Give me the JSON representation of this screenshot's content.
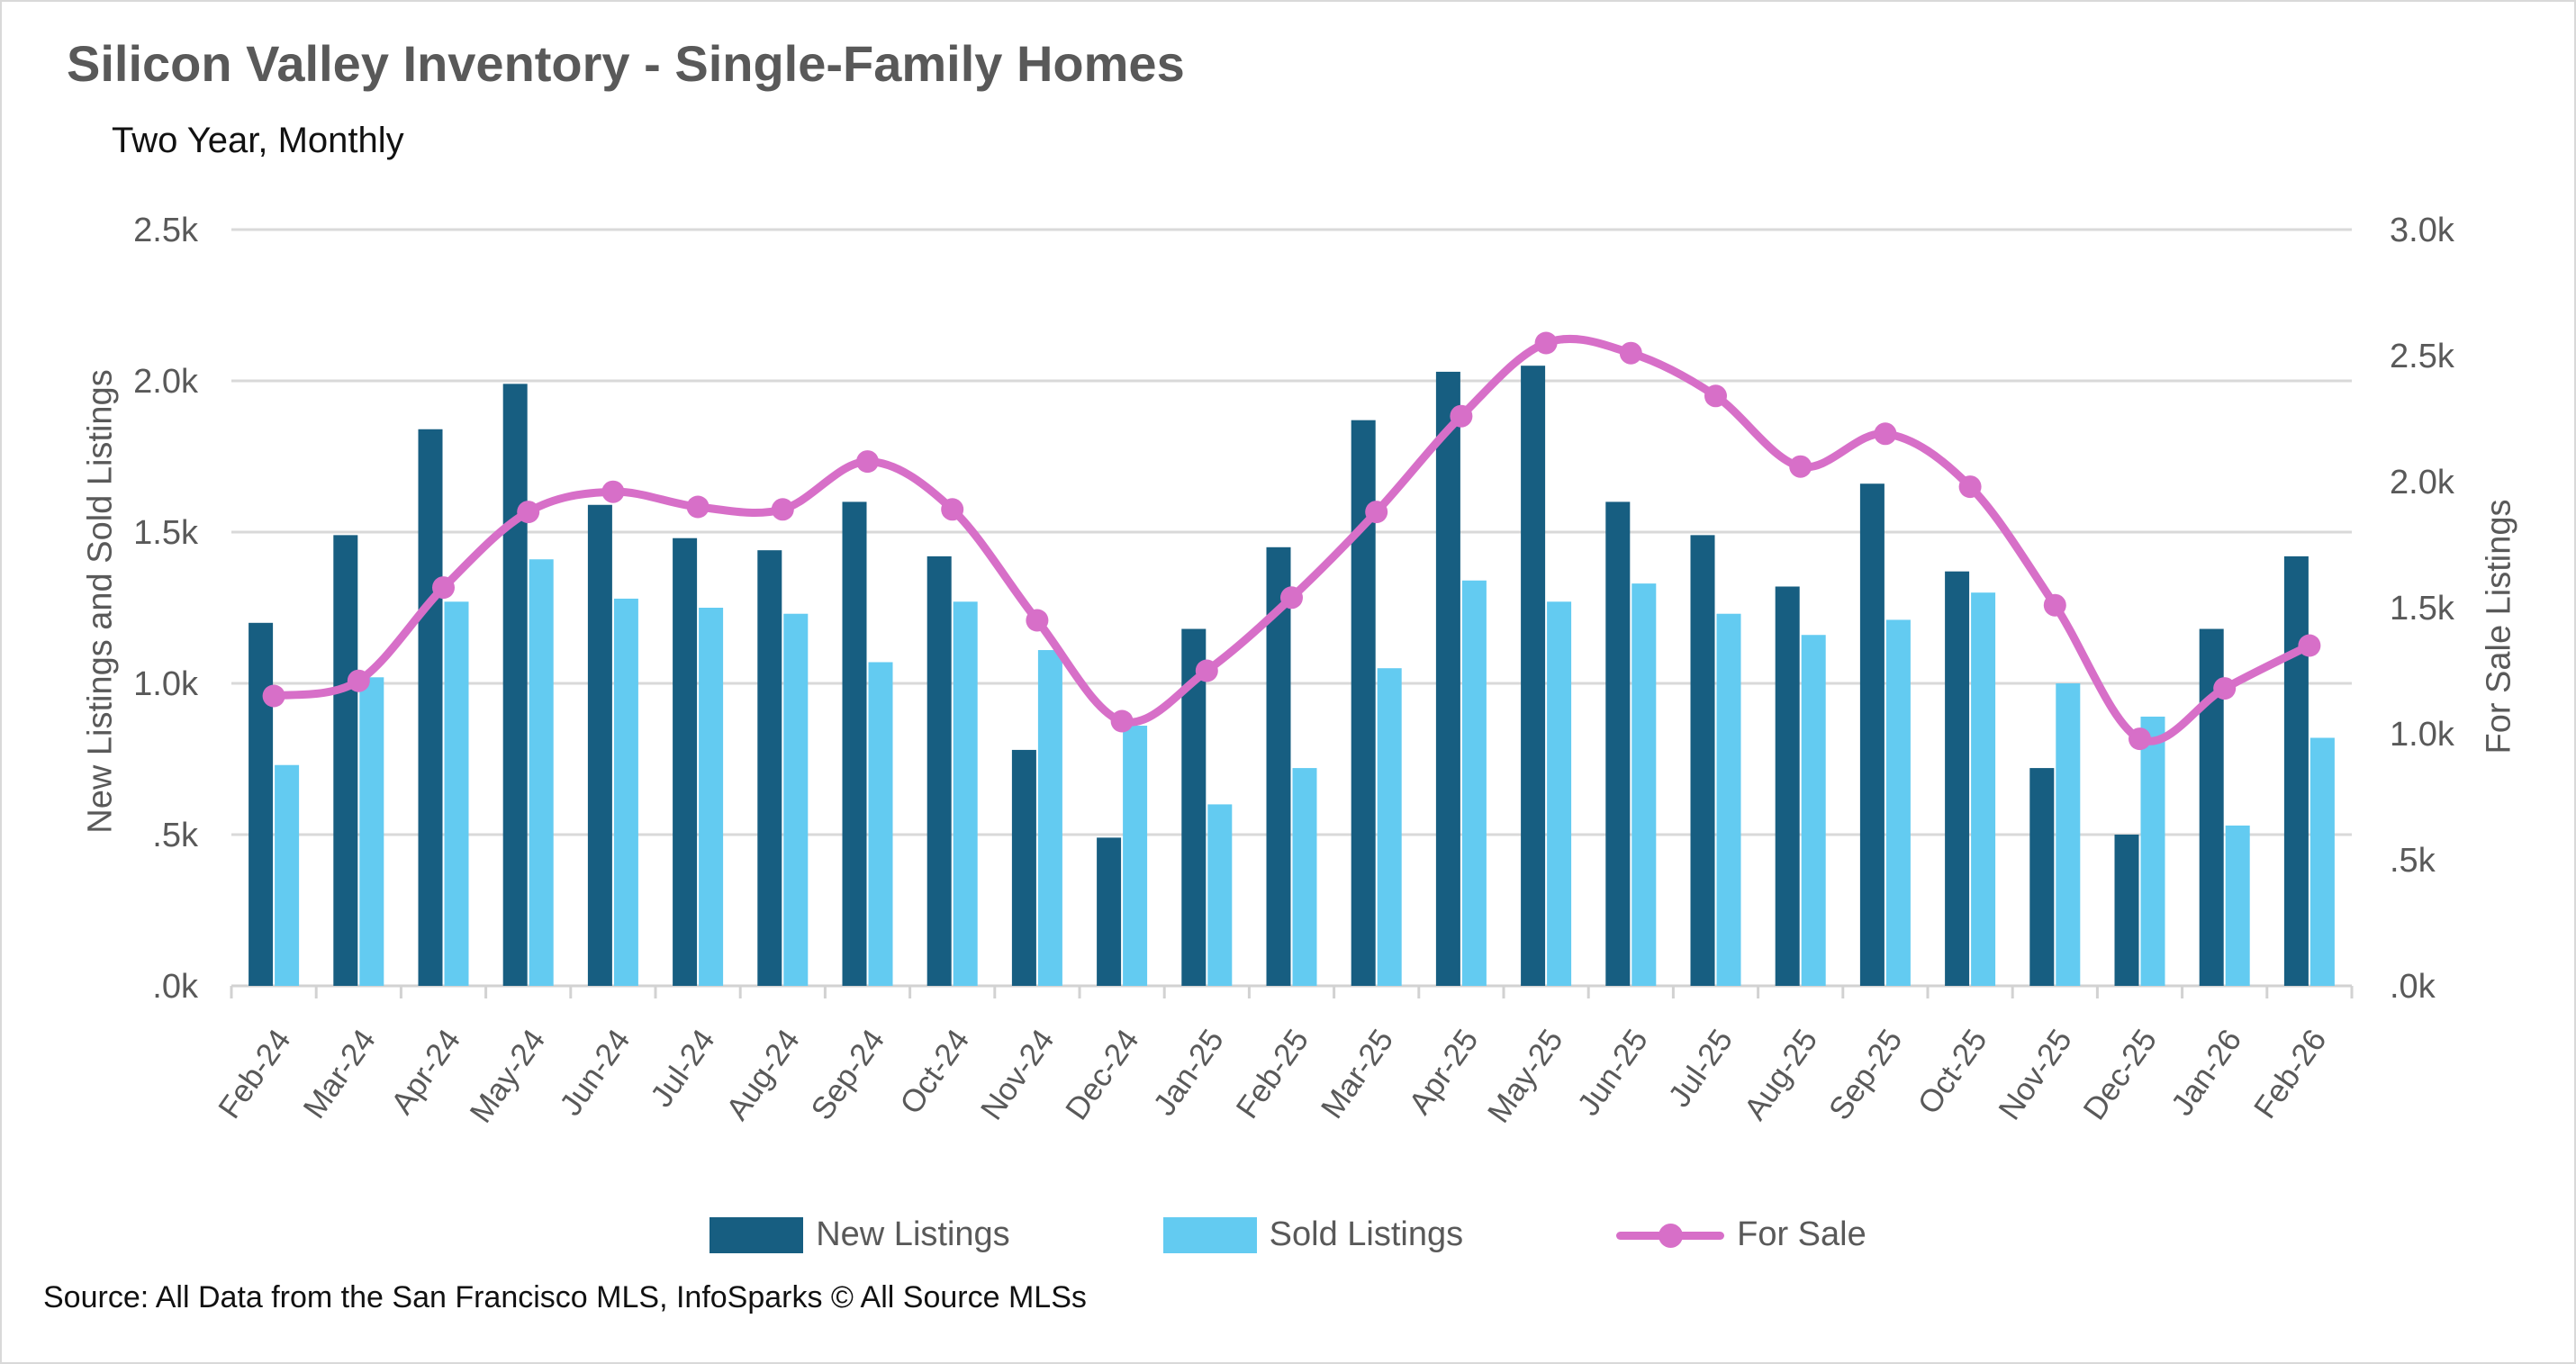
{
  "page": {
    "title": "Silicon Valley Inventory - Single-Family Homes",
    "subtitle": "Two Year, Monthly",
    "source": "Source: All Data from the San Francisco MLS, InfoSparks © All Source MLSs"
  },
  "legend": {
    "new_listings": "New Listings",
    "sold_listings": "Sold Listings",
    "for_sale": "For Sale"
  },
  "colors": {
    "new_listings_bar": "#175e81",
    "sold_listings_bar": "#63cbf1",
    "for_sale_line": "#d76fc8",
    "gridline": "#d9d9d9",
    "axis_line": "#d2d2d2",
    "axis_text": "#595959",
    "title_text": "#595959"
  },
  "chart_data": {
    "type": "bar",
    "subtype": "grouped bars with overlay line on secondary axis",
    "units": "thousands of listings",
    "categories": [
      "Feb-24",
      "Mar-24",
      "Apr-24",
      "May-24",
      "Jun-24",
      "Jul-24",
      "Aug-24",
      "Sep-24",
      "Oct-24",
      "Nov-24",
      "Dec-24",
      "Jan-25",
      "Feb-25",
      "Mar-25",
      "Apr-25",
      "May-25",
      "Jun-25",
      "Jul-25",
      "Aug-25",
      "Sep-25",
      "Oct-25",
      "Nov-25",
      "Dec-25",
      "Jan-26",
      "Feb-26"
    ],
    "series": [
      {
        "name": "New Listings",
        "type": "bar",
        "axis": "left",
        "color": "#175e81",
        "values": [
          1.2,
          1.49,
          1.84,
          1.99,
          1.59,
          1.48,
          1.44,
          1.6,
          1.42,
          0.78,
          0.49,
          1.18,
          1.45,
          1.87,
          2.03,
          2.05,
          1.6,
          1.49,
          1.32,
          1.66,
          1.37,
          0.72,
          0.5,
          1.18,
          1.42
        ]
      },
      {
        "name": "Sold Listings",
        "type": "bar",
        "axis": "left",
        "color": "#63cbf1",
        "values": [
          0.73,
          1.02,
          1.27,
          1.41,
          1.28,
          1.25,
          1.23,
          1.07,
          1.27,
          1.11,
          0.86,
          0.6,
          0.72,
          1.05,
          1.34,
          1.27,
          1.33,
          1.23,
          1.16,
          1.21,
          1.3,
          1.0,
          0.89,
          0.53,
          0.82
        ]
      },
      {
        "name": "For Sale",
        "type": "line",
        "axis": "right",
        "color": "#d76fc8",
        "values": [
          1.15,
          1.21,
          1.58,
          1.88,
          1.96,
          1.9,
          1.89,
          2.08,
          1.89,
          1.45,
          1.05,
          1.25,
          1.54,
          1.88,
          2.26,
          2.55,
          2.51,
          2.34,
          2.06,
          2.19,
          1.98,
          1.51,
          0.98,
          1.18,
          1.35
        ]
      }
    ],
    "left_axis": {
      "title": "New Listings and Sold Listings",
      "range": [
        0,
        2.5
      ],
      "ticks": [
        {
          "value": 2.5,
          "label": "2.5k"
        },
        {
          "value": 2.0,
          "label": "2.0k"
        },
        {
          "value": 1.5,
          "label": "1.5k"
        },
        {
          "value": 1.0,
          "label": "1.0k"
        },
        {
          "value": 0.5,
          "label": ".5k"
        },
        {
          "value": 0.0,
          "label": ".0k"
        }
      ]
    },
    "right_axis": {
      "title": "For Sale Listings",
      "range": [
        0,
        3.0
      ],
      "ticks": [
        {
          "value": 3.0,
          "label": "3.0k"
        },
        {
          "value": 2.5,
          "label": "2.5k"
        },
        {
          "value": 2.0,
          "label": "2.0k"
        },
        {
          "value": 1.5,
          "label": "1.5k"
        },
        {
          "value": 1.0,
          "label": "1.0k"
        },
        {
          "value": 0.5,
          "label": ".5k"
        },
        {
          "value": 0.0,
          "label": ".0k"
        }
      ]
    },
    "grid": true,
    "legend_position": "bottom"
  }
}
